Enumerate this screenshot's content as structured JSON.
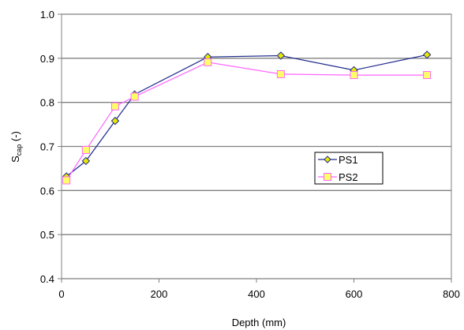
{
  "chart_data": {
    "type": "line",
    "title": "",
    "xlabel": "Depth (mm)",
    "ylabel": "S",
    "ylabel_subscript": "cap",
    "ylabel_suffix": " (-)",
    "xlim": [
      0,
      800
    ],
    "ylim": [
      0.4,
      1.0
    ],
    "x_ticks": [
      0,
      200,
      400,
      600,
      800
    ],
    "y_ticks": [
      0.4,
      0.5,
      0.6,
      0.7,
      0.8,
      0.9,
      1.0
    ],
    "grid": "horizontal",
    "legend_position": "right-center",
    "series": [
      {
        "name": "PS1",
        "color": "#1f2a8c",
        "marker_color": "#e8e800",
        "marker": "diamond",
        "x": [
          10,
          50,
          110,
          150,
          300,
          450,
          600,
          750
        ],
        "y": [
          0.632,
          0.667,
          0.758,
          0.818,
          0.903,
          0.906,
          0.873,
          0.908
        ]
      },
      {
        "name": "PS2",
        "color": "#ff66ff",
        "marker_color": "#ffff66",
        "marker": "square",
        "x": [
          10,
          50,
          110,
          150,
          300,
          450,
          600,
          750
        ],
        "y": [
          0.623,
          0.692,
          0.791,
          0.813,
          0.891,
          0.864,
          0.862,
          0.862
        ]
      }
    ]
  }
}
